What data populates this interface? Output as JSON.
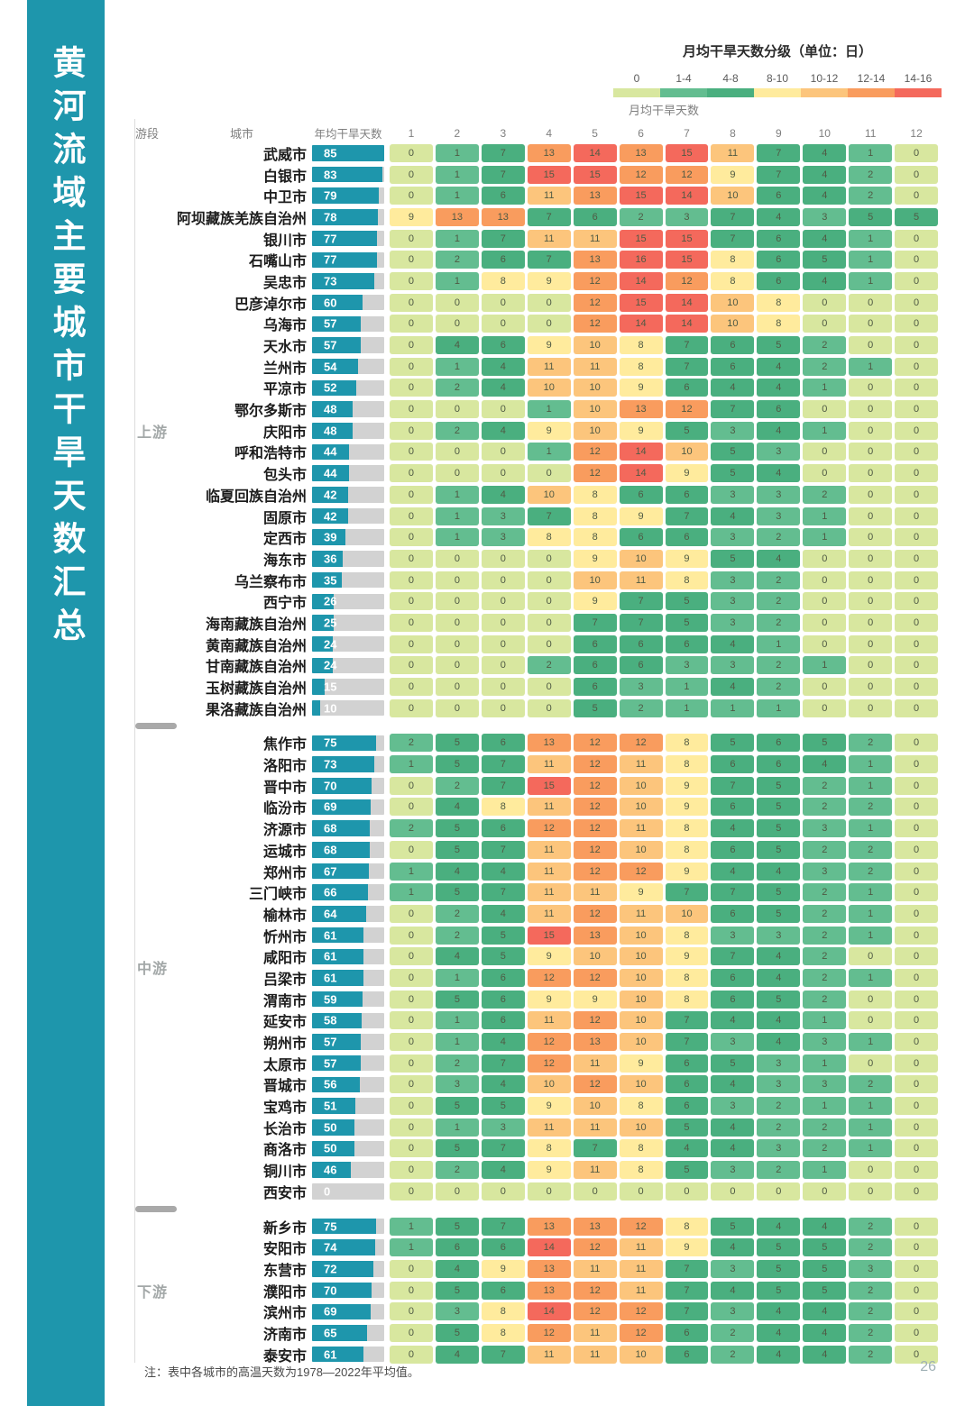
{
  "page": {
    "sidebar_title": "黄河流域主要城市干旱天数汇总",
    "note": "注：表中各城市的高温天数为1978—2022年平均值。",
    "page_number": "26"
  },
  "legend": {
    "title": "月均干旱天数分级（单位：日）",
    "bins": [
      {
        "label": "0",
        "min": 0,
        "max": 0,
        "color": "#d8e79f"
      },
      {
        "label": "1-4",
        "min": 1,
        "max": 3,
        "color": "#63bd90"
      },
      {
        "label": "4-8",
        "min": 4,
        "max": 7,
        "color": "#4aaf7f"
      },
      {
        "label": "8-10",
        "min": 8,
        "max": 9,
        "color": "#ffeb9d"
      },
      {
        "label": "10-12",
        "min": 10,
        "max": 11,
        "color": "#fcc57c"
      },
      {
        "label": "12-14",
        "min": 12,
        "max": 13,
        "color": "#f99c5e"
      },
      {
        "label": "14-16",
        "min": 14,
        "max": 16,
        "color": "#f4695c"
      }
    ]
  },
  "colors": {
    "accent_teal": "#1e96ac",
    "bar_track": "#d2d2d2",
    "divider": "#a9a9a9"
  },
  "chart_data": {
    "type": "heatmap",
    "title": "黄河流域主要城市干旱天数汇总",
    "reach_header": "游段",
    "city_header": "城市",
    "annual_header": "年均干旱天数",
    "columns_header": "月均干旱天数",
    "months": [
      "1",
      "2",
      "3",
      "4",
      "5",
      "6",
      "7",
      "8",
      "9",
      "10",
      "11",
      "12"
    ],
    "annual_bar_max": 85,
    "groups": [
      {
        "reach": "上游",
        "rows": [
          {
            "city": "武威市",
            "annual": 85,
            "months": [
              0,
              1,
              7,
              13,
              14,
              13,
              15,
              11,
              7,
              4,
              1,
              0
            ]
          },
          {
            "city": "白银市",
            "annual": 83,
            "months": [
              0,
              1,
              7,
              15,
              15,
              12,
              12,
              9,
              7,
              4,
              2,
              0
            ]
          },
          {
            "city": "中卫市",
            "annual": 79,
            "months": [
              0,
              1,
              6,
              11,
              13,
              15,
              14,
              10,
              6,
              4,
              2,
              0
            ]
          },
          {
            "city": "阿坝藏族羌族自治州",
            "annual": 78,
            "months": [
              9,
              13,
              13,
              7,
              6,
              2,
              3,
              7,
              4,
              3,
              5,
              5
            ]
          },
          {
            "city": "银川市",
            "annual": 77,
            "months": [
              0,
              1,
              7,
              11,
              11,
              15,
              15,
              7,
              6,
              4,
              1,
              0
            ]
          },
          {
            "city": "石嘴山市",
            "annual": 77,
            "months": [
              0,
              2,
              6,
              7,
              13,
              16,
              15,
              8,
              6,
              5,
              1,
              0
            ]
          },
          {
            "city": "吴忠市",
            "annual": 73,
            "months": [
              0,
              1,
              8,
              9,
              12,
              14,
              12,
              8,
              6,
              4,
              1,
              0
            ]
          },
          {
            "city": "巴彦淖尔市",
            "annual": 60,
            "months": [
              0,
              0,
              0,
              0,
              12,
              15,
              14,
              10,
              8,
              0,
              0,
              0
            ]
          },
          {
            "city": "乌海市",
            "annual": 57,
            "months": [
              0,
              0,
              0,
              0,
              12,
              14,
              14,
              10,
              8,
              0,
              0,
              0
            ]
          },
          {
            "city": "天水市",
            "annual": 57,
            "months": [
              0,
              4,
              6,
              9,
              10,
              8,
              7,
              6,
              5,
              2,
              0,
              0
            ]
          },
          {
            "city": "兰州市",
            "annual": 54,
            "months": [
              0,
              1,
              4,
              11,
              11,
              8,
              7,
              6,
              4,
              2,
              1,
              0
            ]
          },
          {
            "city": "平凉市",
            "annual": 52,
            "months": [
              0,
              2,
              4,
              10,
              10,
              9,
              6,
              4,
              4,
              1,
              0,
              0
            ]
          },
          {
            "city": "鄂尔多斯市",
            "annual": 48,
            "months": [
              0,
              0,
              0,
              1,
              10,
              13,
              12,
              7,
              6,
              0,
              0,
              0
            ]
          },
          {
            "city": "庆阳市",
            "annual": 48,
            "months": [
              0,
              2,
              4,
              9,
              10,
              9,
              5,
              3,
              4,
              1,
              0,
              0
            ]
          },
          {
            "city": "呼和浩特市",
            "annual": 44,
            "months": [
              0,
              0,
              0,
              1,
              12,
              14,
              10,
              5,
              3,
              0,
              0,
              0
            ]
          },
          {
            "city": "包头市",
            "annual": 44,
            "months": [
              0,
              0,
              0,
              0,
              12,
              14,
              9,
              5,
              4,
              0,
              0,
              0
            ]
          },
          {
            "city": "临夏回族自治州",
            "annual": 42,
            "months": [
              0,
              1,
              4,
              10,
              8,
              6,
              6,
              3,
              3,
              2,
              0,
              0
            ]
          },
          {
            "city": "固原市",
            "annual": 42,
            "months": [
              0,
              1,
              3,
              7,
              8,
              9,
              7,
              4,
              3,
              1,
              0,
              0
            ]
          },
          {
            "city": "定西市",
            "annual": 39,
            "months": [
              0,
              1,
              3,
              8,
              8,
              6,
              6,
              3,
              2,
              1,
              0,
              0
            ]
          },
          {
            "city": "海东市",
            "annual": 36,
            "months": [
              0,
              0,
              0,
              0,
              9,
              10,
              9,
              5,
              4,
              0,
              0,
              0
            ]
          },
          {
            "city": "乌兰察布市",
            "annual": 35,
            "months": [
              0,
              0,
              0,
              0,
              10,
              11,
              8,
              3,
              2,
              0,
              0,
              0
            ]
          },
          {
            "city": "西宁市",
            "annual": 26,
            "months": [
              0,
              0,
              0,
              0,
              9,
              7,
              5,
              3,
              2,
              0,
              0,
              0
            ]
          },
          {
            "city": "海南藏族自治州",
            "annual": 25,
            "months": [
              0,
              0,
              0,
              0,
              7,
              7,
              5,
              3,
              2,
              0,
              0,
              0
            ]
          },
          {
            "city": "黄南藏族自治州",
            "annual": 24,
            "months": [
              0,
              0,
              0,
              0,
              6,
              6,
              6,
              4,
              1,
              0,
              0,
              0
            ]
          },
          {
            "city": "甘南藏族自治州",
            "annual": 24,
            "months": [
              0,
              0,
              0,
              2,
              6,
              6,
              3,
              3,
              2,
              1,
              0,
              0
            ]
          },
          {
            "city": "玉树藏族自治州",
            "annual": 15,
            "months": [
              0,
              0,
              0,
              0,
              6,
              3,
              1,
              4,
              2,
              0,
              0,
              0
            ]
          },
          {
            "city": "果洛藏族自治州",
            "annual": 10,
            "months": [
              0,
              0,
              0,
              0,
              5,
              2,
              1,
              1,
              1,
              0,
              0,
              0
            ]
          }
        ]
      },
      {
        "reach": "中游",
        "rows": [
          {
            "city": "焦作市",
            "annual": 75,
            "months": [
              2,
              5,
              6,
              13,
              12,
              12,
              8,
              5,
              6,
              5,
              2,
              0
            ]
          },
          {
            "city": "洛阳市",
            "annual": 73,
            "months": [
              1,
              5,
              7,
              11,
              12,
              11,
              8,
              6,
              6,
              4,
              1,
              0
            ]
          },
          {
            "city": "晋中市",
            "annual": 70,
            "months": [
              0,
              2,
              7,
              15,
              12,
              10,
              9,
              7,
              5,
              2,
              1,
              0
            ]
          },
          {
            "city": "临汾市",
            "annual": 69,
            "months": [
              0,
              4,
              8,
              11,
              12,
              10,
              9,
              6,
              5,
              2,
              2,
              0
            ]
          },
          {
            "city": "济源市",
            "annual": 68,
            "months": [
              2,
              5,
              6,
              12,
              12,
              11,
              8,
              4,
              5,
              3,
              1,
              0
            ]
          },
          {
            "city": "运城市",
            "annual": 68,
            "months": [
              0,
              5,
              7,
              11,
              12,
              10,
              8,
              6,
              5,
              2,
              2,
              0
            ]
          },
          {
            "city": "郑州市",
            "annual": 67,
            "months": [
              1,
              4,
              4,
              11,
              12,
              12,
              9,
              4,
              4,
              3,
              2,
              0
            ]
          },
          {
            "city": "三门峡市",
            "annual": 66,
            "months": [
              1,
              5,
              7,
              11,
              11,
              9,
              7,
              7,
              5,
              2,
              1,
              0
            ]
          },
          {
            "city": "榆林市",
            "annual": 64,
            "months": [
              0,
              2,
              4,
              11,
              12,
              11,
              10,
              6,
              5,
              2,
              1,
              0
            ]
          },
          {
            "city": "忻州市",
            "annual": 61,
            "months": [
              0,
              2,
              5,
              15,
              13,
              10,
              8,
              3,
              3,
              2,
              1,
              0
            ]
          },
          {
            "city": "咸阳市",
            "annual": 61,
            "months": [
              0,
              4,
              5,
              9,
              10,
              10,
              9,
              7,
              4,
              2,
              0,
              0
            ]
          },
          {
            "city": "吕梁市",
            "annual": 61,
            "months": [
              0,
              1,
              6,
              12,
              12,
              10,
              8,
              6,
              4,
              2,
              1,
              0
            ]
          },
          {
            "city": "渭南市",
            "annual": 59,
            "months": [
              0,
              5,
              6,
              9,
              9,
              10,
              8,
              6,
              5,
              2,
              0,
              0
            ]
          },
          {
            "city": "延安市",
            "annual": 58,
            "months": [
              0,
              1,
              6,
              11,
              12,
              10,
              7,
              4,
              4,
              1,
              0,
              0
            ]
          },
          {
            "city": "朔州市",
            "annual": 57,
            "months": [
              0,
              1,
              4,
              12,
              13,
              10,
              7,
              3,
              4,
              3,
              1,
              0
            ]
          },
          {
            "city": "太原市",
            "annual": 57,
            "months": [
              0,
              2,
              7,
              12,
              11,
              9,
              6,
              5,
              3,
              1,
              0,
              0
            ]
          },
          {
            "city": "晋城市",
            "annual": 56,
            "months": [
              0,
              3,
              4,
              10,
              12,
              10,
              6,
              4,
              3,
              3,
              2,
              0
            ]
          },
          {
            "city": "宝鸡市",
            "annual": 51,
            "months": [
              0,
              5,
              5,
              9,
              10,
              8,
              6,
              3,
              2,
              1,
              1,
              0
            ]
          },
          {
            "city": "长治市",
            "annual": 50,
            "months": [
              0,
              1,
              3,
              11,
              11,
              10,
              5,
              4,
              2,
              2,
              1,
              0
            ]
          },
          {
            "city": "商洛市",
            "annual": 50,
            "months": [
              0,
              5,
              7,
              8,
              7,
              8,
              4,
              4,
              3,
              2,
              1,
              0
            ]
          },
          {
            "city": "铜川市",
            "annual": 46,
            "months": [
              0,
              2,
              4,
              9,
              11,
              8,
              5,
              3,
              2,
              1,
              0,
              0
            ]
          },
          {
            "city": "西安市",
            "annual": 0,
            "months": [
              0,
              0,
              0,
              0,
              0,
              0,
              0,
              0,
              0,
              0,
              0,
              0
            ]
          }
        ]
      },
      {
        "reach": "下游",
        "rows": [
          {
            "city": "新乡市",
            "annual": 75,
            "months": [
              1,
              5,
              7,
              13,
              13,
              12,
              8,
              5,
              4,
              4,
              2,
              0
            ]
          },
          {
            "city": "安阳市",
            "annual": 74,
            "months": [
              1,
              6,
              6,
              14,
              12,
              11,
              9,
              4,
              5,
              5,
              2,
              0
            ]
          },
          {
            "city": "东营市",
            "annual": 72,
            "months": [
              0,
              4,
              9,
              13,
              11,
              11,
              7,
              3,
              5,
              5,
              3,
              0
            ]
          },
          {
            "city": "濮阳市",
            "annual": 70,
            "months": [
              0,
              5,
              6,
              13,
              12,
              11,
              7,
              4,
              5,
              5,
              2,
              0
            ]
          },
          {
            "city": "滨州市",
            "annual": 69,
            "months": [
              0,
              3,
              8,
              14,
              12,
              12,
              7,
              3,
              4,
              4,
              2,
              0
            ]
          },
          {
            "city": "济南市",
            "annual": 65,
            "months": [
              0,
              5,
              8,
              12,
              11,
              12,
              6,
              2,
              4,
              4,
              2,
              0
            ]
          },
          {
            "city": "泰安市",
            "annual": 61,
            "months": [
              0,
              4,
              7,
              11,
              11,
              10,
              6,
              2,
              4,
              4,
              2,
              0
            ]
          }
        ]
      }
    ]
  }
}
